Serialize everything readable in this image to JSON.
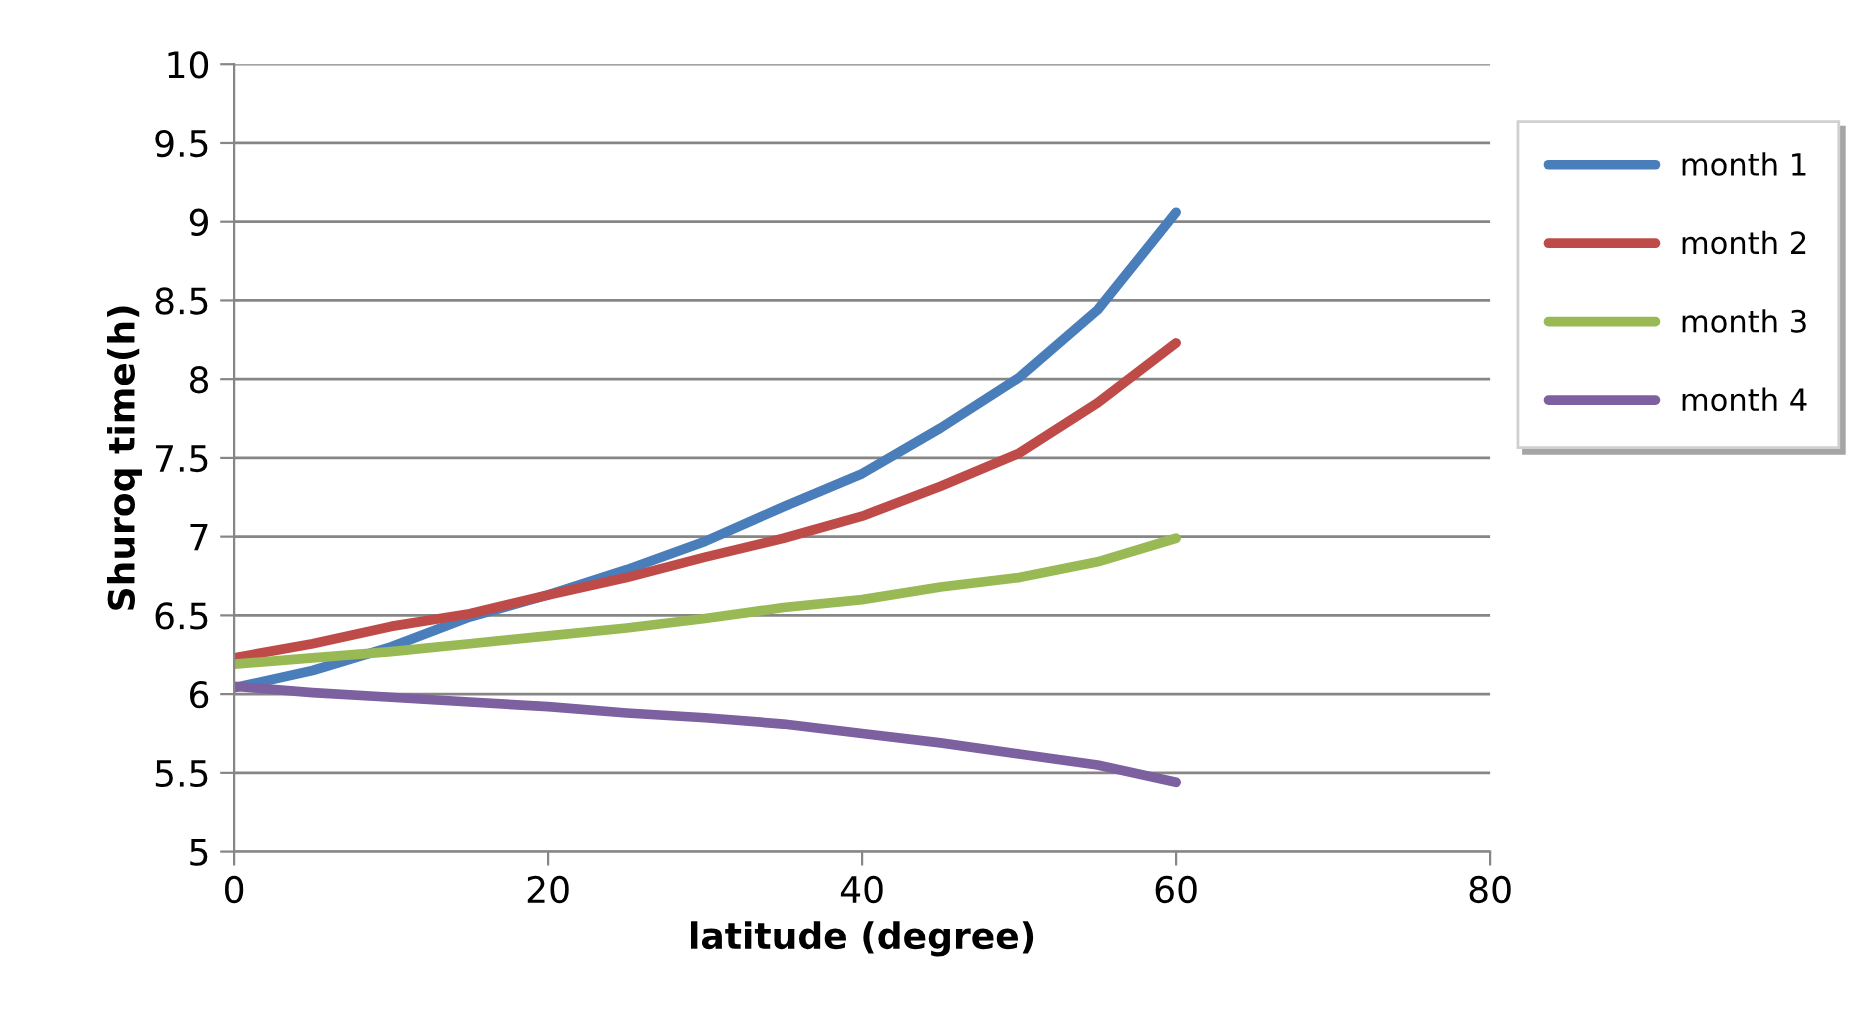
{
  "chart_data": {
    "type": "line",
    "xlabel": "latitude (degree)",
    "ylabel": "Shuroq time(h)",
    "x": [
      0,
      5,
      10,
      15,
      20,
      25,
      30,
      35,
      40,
      45,
      50,
      55,
      60
    ],
    "series": [
      {
        "name": "month 1",
        "color": "#4a7ebb",
        "values": [
          6.04,
          6.15,
          6.3,
          6.49,
          6.63,
          6.79,
          6.97,
          7.19,
          7.4,
          7.69,
          8.01,
          8.44,
          9.06
        ]
      },
      {
        "name": "month 2",
        "color": "#be4b48",
        "values": [
          6.23,
          6.32,
          6.43,
          6.51,
          6.63,
          6.74,
          6.87,
          6.99,
          7.13,
          7.32,
          7.53,
          7.85,
          8.23
        ]
      },
      {
        "name": "month 3",
        "color": "#98b954",
        "values": [
          6.19,
          6.23,
          6.27,
          6.32,
          6.37,
          6.42,
          6.48,
          6.55,
          6.6,
          6.68,
          6.74,
          6.84,
          6.99
        ]
      },
      {
        "name": "month 4",
        "color": "#7d60a0",
        "values": [
          6.05,
          6.01,
          5.98,
          5.95,
          5.92,
          5.88,
          5.85,
          5.81,
          5.75,
          5.69,
          5.62,
          5.55,
          5.44
        ]
      }
    ],
    "xlim": [
      0,
      80
    ],
    "xticks": [
      0,
      20,
      40,
      60,
      80
    ],
    "ylim": [
      5,
      10
    ],
    "yticks": [
      5,
      5.5,
      6,
      6.5,
      7,
      7.5,
      8,
      8.5,
      9,
      9.5,
      10
    ],
    "grid": "y",
    "legend": "right",
    "marker": "none",
    "line_style": "solid"
  }
}
